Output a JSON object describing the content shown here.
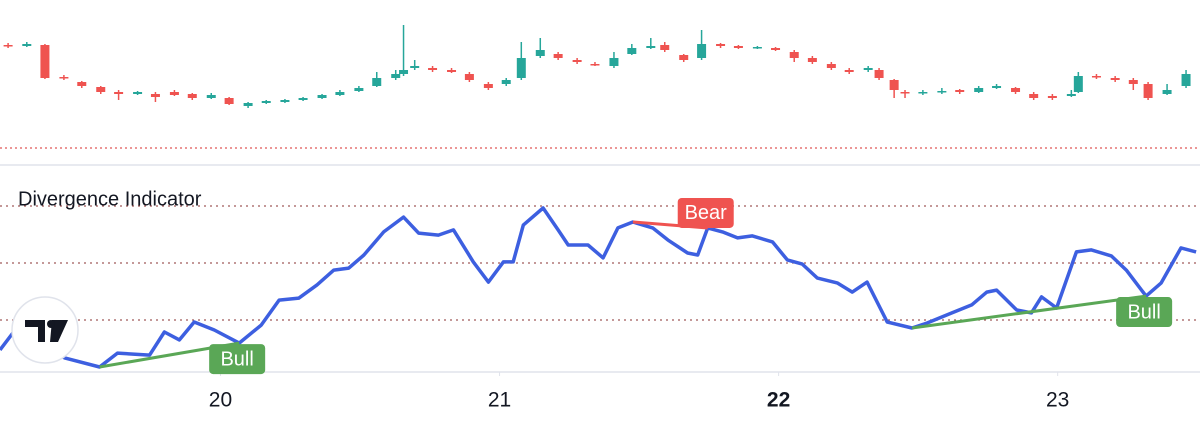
{
  "chart_data": [
    {
      "type": "candlestick",
      "x": [
        19.239,
        19.306,
        19.371,
        19.439,
        19.503,
        19.571,
        19.635,
        19.703,
        19.767,
        19.835,
        19.899,
        19.967,
        20.031,
        20.099,
        20.164,
        20.231,
        20.296,
        20.364,
        20.428,
        20.496,
        20.56,
        20.628,
        20.656,
        20.696,
        20.76,
        20.828,
        20.892,
        20.96,
        21.024,
        21.078,
        21.146,
        21.21,
        21.278,
        21.342,
        21.41,
        21.474,
        21.542,
        21.592,
        21.66,
        21.724,
        21.792,
        21.856,
        21.924,
        21.989,
        22.056,
        22.121,
        22.189,
        22.253,
        22.321,
        22.36,
        22.414,
        22.453,
        22.517,
        22.585,
        22.649,
        22.717,
        22.781,
        22.849,
        22.914,
        22.981,
        23.049,
        23.074,
        23.139,
        23.206,
        23.271,
        23.324,
        23.392,
        23.46
      ],
      "open": [
        105,
        104,
        105,
        73,
        68,
        63,
        58,
        56,
        56,
        58,
        56,
        52,
        52,
        44,
        47,
        48,
        50,
        52,
        55,
        59,
        64,
        72,
        76,
        82,
        82,
        80,
        76,
        66,
        66,
        72,
        94,
        96,
        90,
        86,
        84,
        96,
        102,
        105,
        95,
        92,
        106,
        104,
        102,
        102,
        98,
        92,
        86,
        80,
        80,
        80,
        70,
        58,
        57,
        58,
        60,
        58,
        62,
        62,
        56,
        54,
        54,
        58,
        74,
        72,
        70,
        66,
        56,
        64
      ],
      "high": [
        107,
        108,
        106,
        75,
        69,
        64,
        60,
        59,
        58,
        60,
        57,
        57,
        53,
        48,
        50,
        51,
        53,
        56,
        60,
        64,
        78,
        80,
        125,
        90,
        84,
        82,
        78,
        68,
        72,
        108,
        112,
        98,
        92,
        88,
        98,
        106,
        112,
        108,
        96,
        120,
        107,
        105,
        104,
        103,
        100,
        94,
        88,
        82,
        84,
        82,
        71,
        60,
        60,
        62,
        61,
        64,
        66,
        63,
        58,
        56,
        60,
        78,
        76,
        74,
        72,
        68,
        66,
        80
      ],
      "low": [
        102,
        103,
        71,
        70,
        62,
        56,
        50,
        55,
        48,
        54,
        50,
        51,
        45,
        42,
        46,
        47,
        49,
        51,
        54,
        58,
        63,
        70,
        74,
        80,
        78,
        77,
        68,
        60,
        64,
        70,
        92,
        90,
        86,
        84,
        82,
        95,
        101,
        98,
        88,
        90,
        102,
        101,
        101,
        99,
        88,
        86,
        80,
        76,
        78,
        70,
        52,
        52,
        55,
        56,
        56,
        57,
        61,
        56,
        50,
        50,
        53,
        57,
        71,
        68,
        60,
        50,
        55,
        62
      ],
      "close": [
        104,
        106,
        72,
        72,
        64,
        58,
        56,
        58,
        53,
        55,
        52,
        55,
        46,
        47,
        49,
        50,
        52,
        55,
        58,
        62,
        72,
        76,
        80,
        84,
        80,
        78,
        70,
        62,
        70,
        92,
        100,
        92,
        88,
        85,
        92,
        102,
        104,
        100,
        90,
        106,
        104,
        102,
        103,
        100,
        92,
        88,
        82,
        78,
        82,
        72,
        60,
        57,
        58,
        59,
        58,
        62,
        64,
        58,
        52,
        52,
        56,
        74,
        73,
        70,
        66,
        52,
        60,
        76
      ],
      "up_color": "#26a69a",
      "down_color": "#ef5350",
      "price_line": 2,
      "price_line_color": "#e57373",
      "xlim": [
        19.21,
        23.51
      ],
      "ylim": [
        0,
        140
      ]
    },
    {
      "type": "line",
      "title": "Divergence Indicator",
      "x": [
        19.21,
        19.264,
        19.353,
        19.442,
        19.567,
        19.631,
        19.746,
        19.799,
        19.853,
        19.906,
        19.978,
        20.067,
        20.146,
        20.21,
        20.281,
        20.346,
        20.406,
        20.46,
        20.514,
        20.585,
        20.656,
        20.71,
        20.781,
        20.835,
        20.906,
        20.96,
        21.014,
        21.049,
        21.085,
        21.156,
        21.21,
        21.246,
        21.317,
        21.371,
        21.424,
        21.478,
        21.549,
        21.603,
        21.674,
        21.71,
        21.746,
        21.799,
        21.853,
        21.906,
        21.978,
        22.031,
        22.085,
        22.139,
        22.21,
        22.264,
        22.317,
        22.389,
        22.478,
        22.531,
        22.621,
        22.692,
        22.746,
        22.781,
        22.853,
        22.906,
        22.942,
        22.996,
        23.067,
        23.121,
        23.192,
        23.246,
        23.317,
        23.371,
        23.442,
        23.496
      ],
      "values": [
        19.5,
        26.5,
        21.2,
        16.7,
        13.5,
        18.4,
        17.7,
        25.8,
        23,
        29.3,
        26.5,
        21.9,
        28.2,
        37,
        37.7,
        42.3,
        47.5,
        48.2,
        52.8,
        60.9,
        66.1,
        60.5,
        59.8,
        61.6,
        50.4,
        43.3,
        50.4,
        50.4,
        63.3,
        69.3,
        61.6,
        56.3,
        56.3,
        51.8,
        62.3,
        64.4,
        62.3,
        58.1,
        53.5,
        52.8,
        62.3,
        60.9,
        58.8,
        59.5,
        57.4,
        51.1,
        49.6,
        44.7,
        43,
        39.8,
        43.3,
        29.3,
        27.2,
        28.9,
        32.5,
        35.3,
        39.8,
        40.5,
        33.5,
        32.5,
        38.1,
        34.2,
        53.9,
        54.6,
        52.5,
        47.5,
        38.4,
        43,
        55.3,
        53.9
      ],
      "color": "#3d5fe0",
      "levels": [
        70,
        50,
        30
      ],
      "level_color": "#a05a5a",
      "divergences": [
        {
          "label": "Bull",
          "color": "#5aa756",
          "x": [
            19.567,
            20.067
          ],
          "values": [
            13.5,
            21.9
          ]
        },
        {
          "label": "Bear",
          "color": "#ef5350",
          "x": [
            21.478,
            21.746
          ],
          "values": [
            64.4,
            62.3
          ]
        },
        {
          "label": "Bull",
          "color": "#5aa756",
          "x": [
            22.478,
            23.317
          ],
          "values": [
            27.2,
            38.4
          ]
        }
      ],
      "xlim": [
        19.21,
        23.51
      ],
      "ylim": [
        10,
        101
      ],
      "xticks": [
        20,
        21,
        22,
        23
      ],
      "bold_tick": 22
    }
  ]
}
